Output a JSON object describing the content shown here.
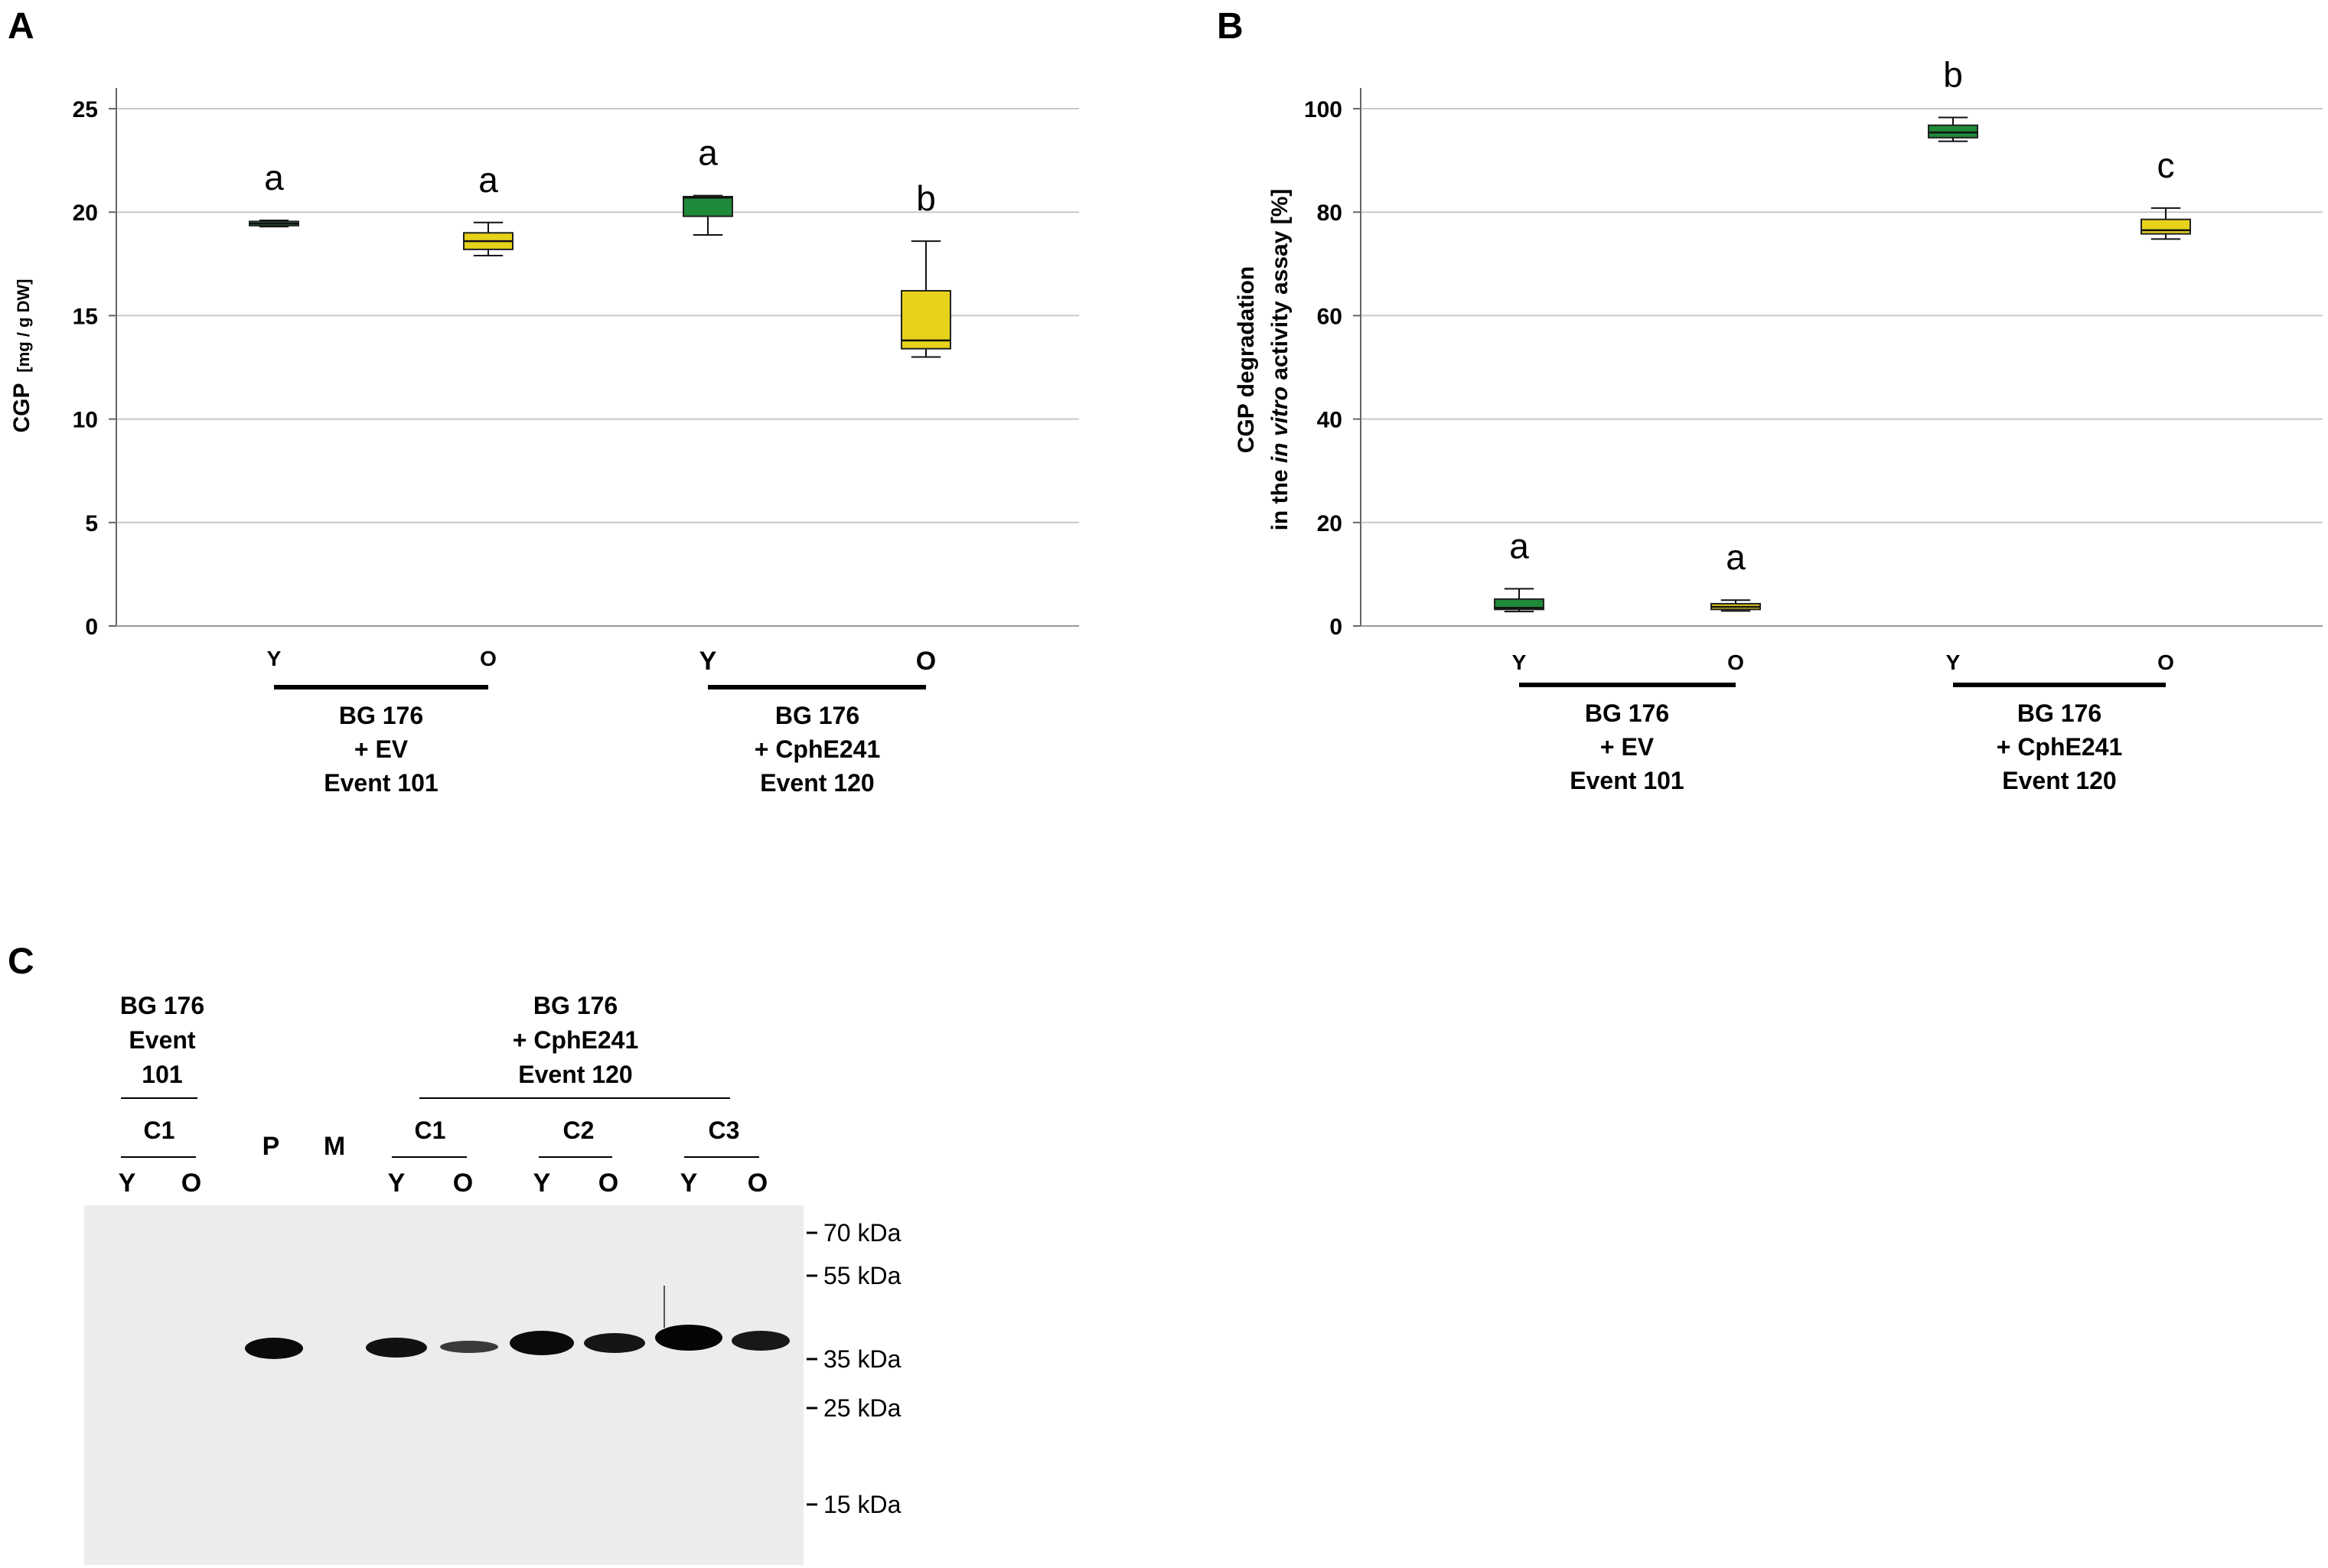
{
  "panels": {
    "A": {
      "label": "A",
      "chart_data": {
        "type": "box",
        "ylabel_main": "CGP",
        "ylabel_unit": "[mg / g DW]",
        "ylim": [
          0,
          26
        ],
        "yticks": [
          0,
          5,
          10,
          15,
          20,
          25
        ],
        "grid": true,
        "groups": [
          {
            "name_lines": [
              "BG 176",
              "+ EV",
              "Event 101"
            ],
            "categories": [
              "Y",
              "O"
            ]
          },
          {
            "name_lines": [
              "BG 176",
              "+ CphE241",
              "Event 120"
            ],
            "categories": [
              "Y",
              "O"
            ]
          }
        ],
        "boxes": [
          {
            "category": "Y",
            "color": "#1e8a3a",
            "min": 19.3,
            "q1": 19.35,
            "median": 19.45,
            "q3": 19.55,
            "max": 19.6,
            "letter": "a"
          },
          {
            "category": "O",
            "color": "#e6d21a",
            "min": 17.9,
            "q1": 18.2,
            "median": 18.6,
            "q3": 19.0,
            "max": 19.5,
            "letter": "a"
          },
          {
            "category": "Y",
            "color": "#1e8a3a",
            "min": 18.9,
            "q1": 19.8,
            "median": 20.7,
            "q3": 20.75,
            "max": 20.8,
            "letter": "a"
          },
          {
            "category": "O",
            "color": "#e6d21a",
            "min": 13.0,
            "q1": 13.4,
            "median": 13.8,
            "q3": 16.2,
            "max": 18.6,
            "letter": "b"
          }
        ]
      }
    },
    "B": {
      "label": "B",
      "chart_data": {
        "type": "box",
        "ylabel_line1": "CGP degradation",
        "ylabel_line2_pre": "in the ",
        "ylabel_line2_italic": "in vitro",
        "ylabel_line2_post": " activity assay [%]",
        "ylim": [
          0,
          104
        ],
        "yticks": [
          0,
          20,
          40,
          60,
          80,
          100
        ],
        "grid": true,
        "groups": [
          {
            "name_lines": [
              "BG 176",
              "+ EV",
              "Event 101"
            ],
            "categories": [
              "Y",
              "O"
            ]
          },
          {
            "name_lines": [
              "BG 176",
              "+ CphE241",
              "Event 120"
            ],
            "categories": [
              "Y",
              "O"
            ]
          }
        ],
        "boxes": [
          {
            "category": "Y",
            "color": "#1e8a3a",
            "min": 2.8,
            "q1": 3.2,
            "median": 3.5,
            "q3": 5.2,
            "max": 7.2,
            "letter": "a"
          },
          {
            "category": "O",
            "color": "#e6d21a",
            "min": 2.9,
            "q1": 3.2,
            "median": 3.7,
            "q3": 4.3,
            "max": 5.0,
            "letter": "a"
          },
          {
            "category": "Y",
            "color": "#1e8a3a",
            "min": 93.7,
            "q1": 94.4,
            "median": 95.4,
            "q3": 96.8,
            "max": 98.3,
            "letter": "b"
          },
          {
            "category": "O",
            "color": "#e6d21a",
            "min": 74.8,
            "q1": 75.8,
            "median": 76.5,
            "q3": 78.6,
            "max": 80.8,
            "letter": "c"
          }
        ]
      }
    },
    "C": {
      "label": "C",
      "header_left": [
        "BG 176",
        "Event",
        "101"
      ],
      "header_right": [
        "BG 176",
        "+ CphE241",
        "Event 120"
      ],
      "clones": [
        "C1",
        "C2",
        "C3"
      ],
      "clone_left": "C1",
      "lanes": [
        "Y",
        "O",
        "P",
        "M",
        "Y",
        "O",
        "Y",
        "O",
        "Y",
        "O"
      ],
      "markers": [
        "70 kDa",
        "55 kDa",
        "35 kDa",
        "25 kDa",
        "15 kDa"
      ]
    }
  }
}
